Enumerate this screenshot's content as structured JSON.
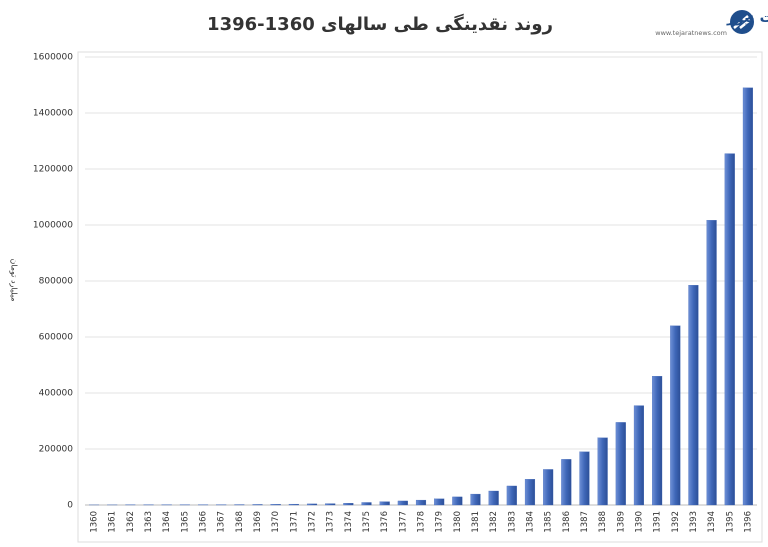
{
  "chart_data": {
    "type": "bar",
    "title": "روند نقدینگی طی سالهای 1360-1396",
    "y_label": "میلیارد تومان",
    "logo_text": "تجارت نیوز",
    "logo_url": "www.tejaratnews.com",
    "categories": [
      "1360",
      "1361",
      "1362",
      "1363",
      "1364",
      "1365",
      "1366",
      "1367",
      "1368",
      "1369",
      "1370",
      "1371",
      "1372",
      "1373",
      "1374",
      "1375",
      "1376",
      "1377",
      "1378",
      "1379",
      "1380",
      "1381",
      "1382",
      "1383",
      "1384",
      "1385",
      "1386",
      "1387",
      "1388",
      "1389",
      "1390",
      "1391",
      "1392",
      "1393",
      "1394",
      "1395",
      "1396"
    ],
    "values": [
      400,
      500,
      600,
      700,
      800,
      900,
      1100,
      1300,
      1600,
      2000,
      2500,
      3100,
      4000,
      5000,
      6500,
      9000,
      12000,
      14500,
      17500,
      22000,
      29000,
      39000,
      50000,
      68000,
      92000,
      127000,
      163000,
      190000,
      240000,
      295000,
      355000,
      460000,
      640000,
      785000,
      1017000,
      1255000,
      1490000
    ],
    "color": "#3f67b8",
    "ylim": [
      0,
      1600000
    ],
    "yticks": [
      0,
      200000,
      400000,
      600000,
      800000,
      1000000,
      1200000,
      1400000,
      1600000
    ],
    "grid": true
  }
}
